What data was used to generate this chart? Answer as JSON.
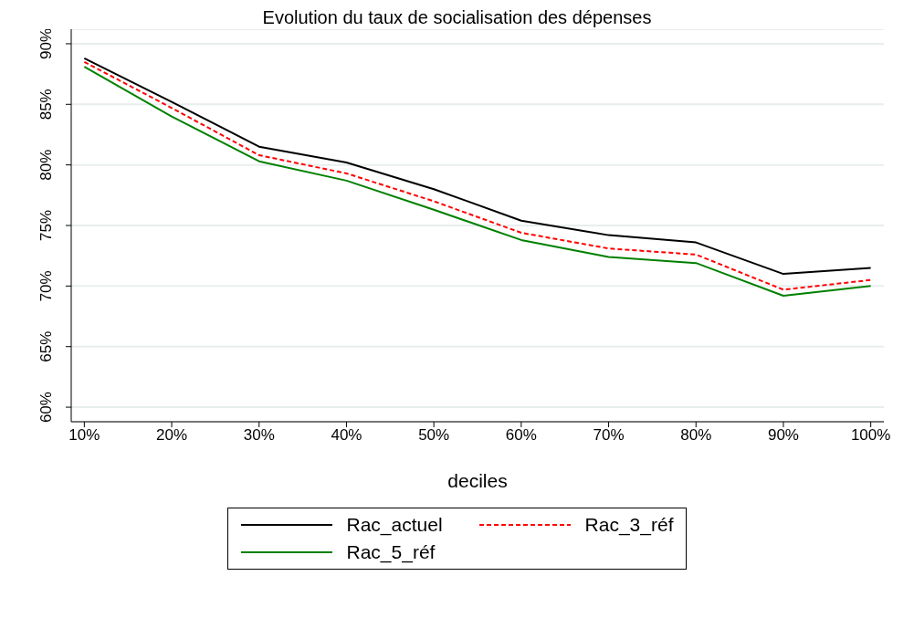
{
  "chart_data": {
    "type": "line",
    "title": "Evolution du taux de socialisation des dépenses",
    "xlabel": "deciles",
    "categories": [
      "10%",
      "20%",
      "30%",
      "40%",
      "50%",
      "60%",
      "70%",
      "80%",
      "90%",
      "100%"
    ],
    "series": [
      {
        "name": "Rac_actuel",
        "color": "#000000",
        "line_style": "solid",
        "values": [
          88.8,
          85.2,
          81.5,
          80.2,
          78.0,
          75.4,
          74.2,
          73.6,
          71.0,
          71.5
        ]
      },
      {
        "name": "Rac_3_réf",
        "color": "#ff0000",
        "line_style": "dashed",
        "values": [
          88.5,
          84.7,
          80.8,
          79.3,
          77.0,
          74.4,
          73.1,
          72.6,
          69.7,
          70.5
        ]
      },
      {
        "name": "Rac_5_réf",
        "color": "#008000",
        "line_style": "solid",
        "values": [
          88.1,
          84.0,
          80.3,
          78.7,
          76.3,
          73.8,
          72.4,
          71.9,
          69.2,
          70.0
        ]
      }
    ],
    "ylim": [
      58.8,
      91.2
    ],
    "yticks": [
      {
        "value": 60,
        "label": "60%"
      },
      {
        "value": 65,
        "label": "65%"
      },
      {
        "value": 70,
        "label": "70%"
      },
      {
        "value": 75,
        "label": "75%"
      },
      {
        "value": 80,
        "label": "80%"
      },
      {
        "value": 85,
        "label": "85%"
      },
      {
        "value": 90,
        "label": "90%"
      }
    ],
    "grid": "y",
    "legend": "bottom",
    "marker": "none"
  }
}
